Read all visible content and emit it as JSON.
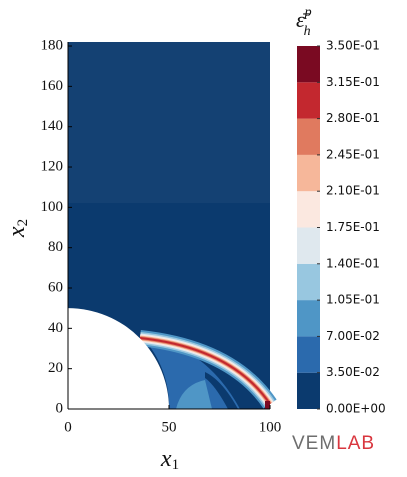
{
  "chart_data": {
    "type": "contour",
    "xlabel": {
      "text": "x",
      "subscript": "1"
    },
    "ylabel": {
      "text": "x",
      "subscript": "2"
    },
    "xlim": [
      0,
      100
    ],
    "ylim": [
      0,
      182
    ],
    "xticks": [
      0,
      50,
      100
    ],
    "yticks": [
      0,
      20,
      40,
      60,
      80,
      100,
      120,
      140,
      160,
      180
    ],
    "colorbar": {
      "label": {
        "symbol": "ε̄",
        "subscript": "h",
        "superscript": "p"
      },
      "lim": [
        0,
        0.35
      ],
      "ticks": [
        {
          "value": 0,
          "label": "0.00E+00"
        },
        {
          "value": 0.035,
          "label": "3.50E-02"
        },
        {
          "value": 0.07,
          "label": "7.00E-02"
        },
        {
          "value": 0.105,
          "label": "1.05E-01"
        },
        {
          "value": 0.14,
          "label": "1.40E-01"
        },
        {
          "value": 0.175,
          "label": "1.75E-01"
        },
        {
          "value": 0.21,
          "label": "2.10E-01"
        },
        {
          "value": 0.245,
          "label": "2.45E-01"
        },
        {
          "value": 0.28,
          "label": "2.80E-01"
        },
        {
          "value": 0.315,
          "label": "3.15E-01"
        },
        {
          "value": 0.35,
          "label": "3.50E-01"
        }
      ],
      "colors": [
        "#0b3a6e",
        "#2b6aad",
        "#4f96c6",
        "#98c7e0",
        "#dfe8ee",
        "#fbe8e0",
        "#f6b79a",
        "#e07a5f",
        "#c3282f",
        "#7a0a22"
      ]
    },
    "logo": [
      "VEM",
      "LAB"
    ]
  }
}
